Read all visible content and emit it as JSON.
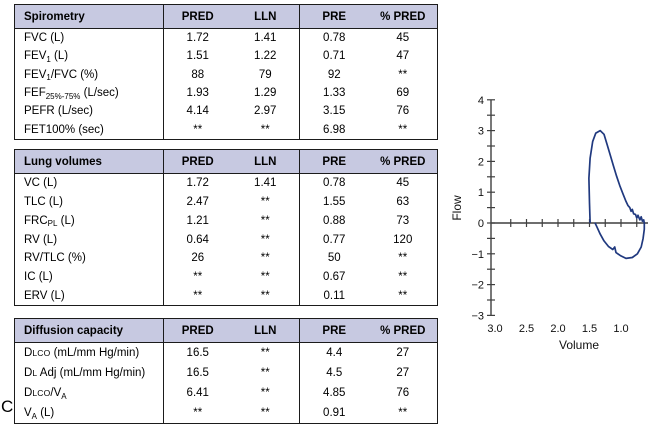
{
  "figure": {
    "panel_label": "C"
  },
  "columns": [
    "PRED",
    "LLN",
    "PRE",
    "% PRED"
  ],
  "tables": [
    {
      "title": "Spirometry",
      "rows": [
        {
          "label_parts": [
            [
              "n",
              "FVC (L)"
            ]
          ],
          "values": [
            "1.72",
            "1.41",
            "0.78",
            "45"
          ]
        },
        {
          "label_parts": [
            [
              "n",
              "FEV"
            ],
            [
              "s",
              "1"
            ],
            [
              "n",
              " (L)"
            ]
          ],
          "values": [
            "1.51",
            "1.22",
            "0.71",
            "47"
          ]
        },
        {
          "label_parts": [
            [
              "n",
              "FEV"
            ],
            [
              "s",
              "1"
            ],
            [
              "n",
              "/FVC (%)"
            ]
          ],
          "values": [
            "88",
            "79",
            "92",
            "**"
          ]
        },
        {
          "label_parts": [
            [
              "n",
              "FEF"
            ],
            [
              "s",
              "25%-75%"
            ],
            [
              "n",
              " (L/sec)"
            ]
          ],
          "values": [
            "1.93",
            "1.29",
            "1.33",
            "69"
          ]
        },
        {
          "label_parts": [
            [
              "n",
              "PEFR (L/sec)"
            ]
          ],
          "values": [
            "4.14",
            "2.97",
            "3.15",
            "76"
          ]
        },
        {
          "label_parts": [
            [
              "n",
              "FET100% (sec)"
            ]
          ],
          "values": [
            "**",
            "**",
            "6.98",
            "**"
          ]
        }
      ]
    },
    {
      "title": "Lung volumes",
      "rows": [
        {
          "label_parts": [
            [
              "n",
              "VC (L)"
            ]
          ],
          "values": [
            "1.72",
            "1.41",
            "0.78",
            "45"
          ]
        },
        {
          "label_parts": [
            [
              "n",
              "TLC (L)"
            ]
          ],
          "values": [
            "2.47",
            "**",
            "1.55",
            "63"
          ]
        },
        {
          "label_parts": [
            [
              "n",
              "FRC"
            ],
            [
              "s",
              "PL"
            ],
            [
              "n",
              " (L)"
            ]
          ],
          "values": [
            "1.21",
            "**",
            "0.88",
            "73"
          ]
        },
        {
          "label_parts": [
            [
              "n",
              "RV (L)"
            ]
          ],
          "values": [
            "0.64",
            "**",
            "0.77",
            "120"
          ]
        },
        {
          "label_parts": [
            [
              "n",
              "RV/TLC (%)"
            ]
          ],
          "values": [
            "26",
            "**",
            "50",
            "**"
          ]
        },
        {
          "label_parts": [
            [
              "n",
              "IC (L)"
            ]
          ],
          "values": [
            "**",
            "**",
            "0.67",
            "**"
          ]
        },
        {
          "label_parts": [
            [
              "n",
              "ERV (L)"
            ]
          ],
          "values": [
            "**",
            "**",
            "0.11",
            "**"
          ]
        }
      ]
    },
    {
      "title": "Diffusion capacity",
      "rows": [
        {
          "label_parts": [
            [
              "n",
              "D"
            ],
            [
              "c",
              "LCO"
            ],
            [
              "n",
              " (mL/mm Hg/min)"
            ]
          ],
          "values": [
            "16.5",
            "**",
            "4.4",
            "27"
          ]
        },
        {
          "label_parts": [
            [
              "n",
              "D"
            ],
            [
              "c",
              "L"
            ],
            [
              "n",
              " Adj (mL/mm Hg/min)"
            ]
          ],
          "values": [
            "16.5",
            "**",
            "4.5",
            "27"
          ]
        },
        {
          "label_parts": [
            [
              "n",
              "D"
            ],
            [
              "c",
              "LCO"
            ],
            [
              "n",
              "/V"
            ],
            [
              "s",
              "A"
            ]
          ],
          "values": [
            "6.41",
            "**",
            "4.85",
            "76"
          ]
        },
        {
          "label_parts": [
            [
              "n",
              "V"
            ],
            [
              "s",
              "A"
            ],
            [
              "n",
              " (L)"
            ]
          ],
          "values": [
            "**",
            "**",
            "0.91",
            "**"
          ]
        }
      ]
    }
  ],
  "chart_data": {
    "type": "line",
    "description": "Flow-volume loop",
    "xlabel": "Volume",
    "ylabel": "Flow",
    "x_reversed": true,
    "xlim": [
      3.05,
      0.55
    ],
    "ylim": [
      -3,
      4
    ],
    "x_ticks": [
      3.0,
      2.5,
      2.0,
      1.5,
      1.0
    ],
    "x_tick_labels": [
      "3.0",
      "2.5",
      "2.0",
      "1.5",
      "1.0"
    ],
    "x_minor_tick_step": 0.25,
    "y_ticks": [
      4,
      3,
      2,
      1,
      0,
      -1,
      -2,
      -3
    ],
    "y_tick_labels": [
      "4",
      "3",
      "2",
      "1",
      "0",
      "−1",
      "−2",
      "−3"
    ],
    "y_minor_tick_step": 0.5,
    "grid": false,
    "legend": false,
    "line_color": "#20397f",
    "series": [
      {
        "name": "flow-volume-loop",
        "points": [
          [
            1.49,
            0.02
          ],
          [
            1.5,
            0.65
          ],
          [
            1.51,
            1.45
          ],
          [
            1.49,
            2.1
          ],
          [
            1.45,
            2.65
          ],
          [
            1.4,
            2.92
          ],
          [
            1.33,
            3.0
          ],
          [
            1.27,
            2.88
          ],
          [
            1.22,
            2.55
          ],
          [
            1.17,
            2.2
          ],
          [
            1.12,
            1.86
          ],
          [
            1.07,
            1.52
          ],
          [
            1.02,
            1.22
          ],
          [
            0.97,
            0.95
          ],
          [
            0.92,
            0.7
          ],
          [
            0.89,
            0.57
          ],
          [
            0.86,
            0.5
          ],
          [
            0.84,
            0.38
          ],
          [
            0.82,
            0.44
          ],
          [
            0.8,
            0.3
          ],
          [
            0.77,
            0.28
          ],
          [
            0.75,
            0.16
          ],
          [
            0.73,
            0.25
          ],
          [
            0.7,
            0.1
          ],
          [
            0.68,
            0.2
          ],
          [
            0.66,
            0.06
          ],
          [
            0.64,
            0.1
          ],
          [
            0.63,
            0.0
          ],
          [
            0.63,
            -0.2
          ],
          [
            0.65,
            -0.5
          ],
          [
            0.68,
            -0.78
          ],
          [
            0.74,
            -1.0
          ],
          [
            0.82,
            -1.12
          ],
          [
            0.92,
            -1.15
          ],
          [
            1.01,
            -1.06
          ],
          [
            1.08,
            -0.96
          ],
          [
            1.1,
            -0.78
          ],
          [
            1.13,
            -0.86
          ],
          [
            1.2,
            -0.76
          ],
          [
            1.27,
            -0.58
          ],
          [
            1.33,
            -0.36
          ],
          [
            1.38,
            -0.14
          ],
          [
            1.41,
            -0.01
          ]
        ]
      }
    ]
  }
}
